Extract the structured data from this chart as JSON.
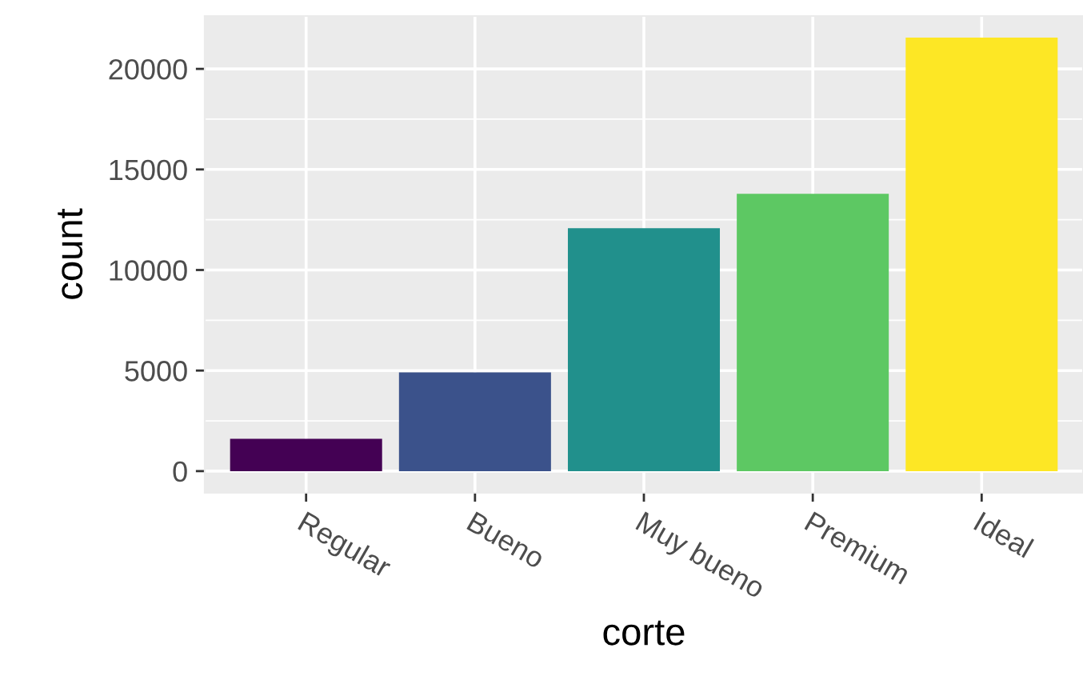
{
  "chart_data": {
    "type": "bar",
    "xlabel": "corte",
    "ylabel": "count",
    "categories": [
      "Regular",
      "Bueno",
      "Muy bueno",
      "Premium",
      "Ideal"
    ],
    "values": [
      1610,
      4906,
      12082,
      13791,
      21551
    ],
    "colors": [
      "#440154",
      "#3b528b",
      "#21908c",
      "#5dc863",
      "#fde725"
    ],
    "ylim": [
      -1078,
      22629
    ],
    "yticks": [
      0,
      5000,
      10000,
      15000,
      20000
    ],
    "grid": true
  }
}
